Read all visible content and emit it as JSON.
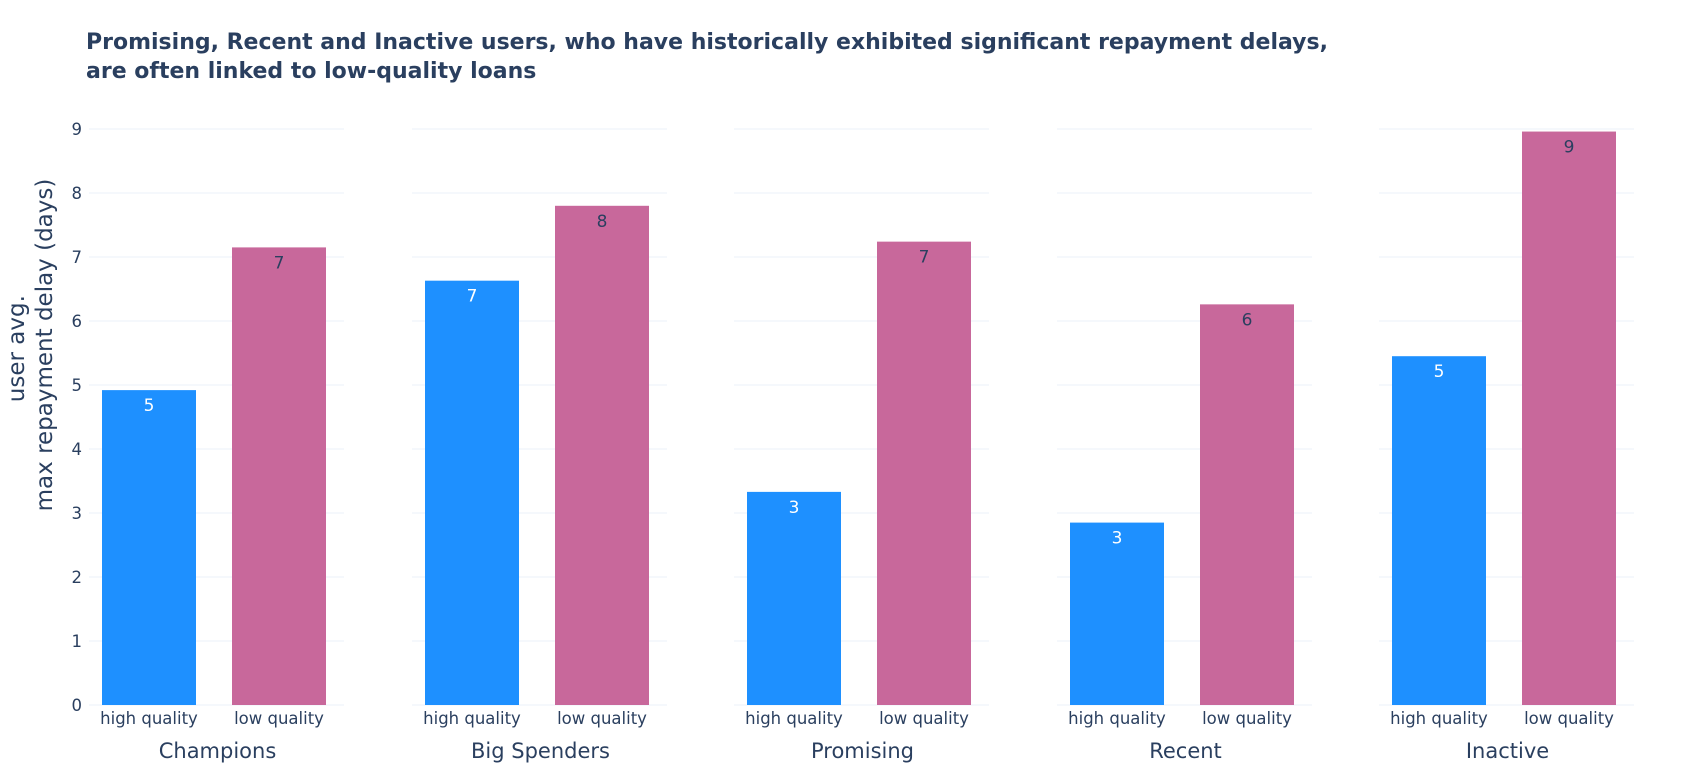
{
  "chart_data": {
    "type": "bar",
    "title_lines": [
      "Promising, Recent and Inactive users, who have historically exhibited significant repayment delays,",
      "are often linked to low-quality loans"
    ],
    "ylabel_lines": [
      "user avg.",
      "max repayment delay (days)"
    ],
    "ylim": [
      0,
      9
    ],
    "yticks": [
      0,
      1,
      2,
      3,
      4,
      5,
      6,
      7,
      8,
      9
    ],
    "grid": true,
    "categories": [
      "high quality",
      "low quality"
    ],
    "colors": {
      "high quality": "#1e90ff",
      "low quality": "#c8689b"
    },
    "label_colors": {
      "high quality": "#ffffff",
      "low quality": "#2a3f5f"
    },
    "panels": [
      {
        "name": "Champions",
        "values": [
          4.92,
          7.15
        ],
        "labels": [
          "5",
          "7"
        ]
      },
      {
        "name": "Big Spenders",
        "values": [
          6.63,
          7.8
        ],
        "labels": [
          "7",
          "8"
        ]
      },
      {
        "name": "Promising",
        "values": [
          3.33,
          7.24
        ],
        "labels": [
          "3",
          "7"
        ]
      },
      {
        "name": "Recent",
        "values": [
          2.85,
          6.26
        ],
        "labels": [
          "3",
          "6"
        ]
      },
      {
        "name": "Inactive",
        "values": [
          5.45,
          8.96
        ],
        "labels": [
          "5",
          "9"
        ]
      }
    ]
  }
}
